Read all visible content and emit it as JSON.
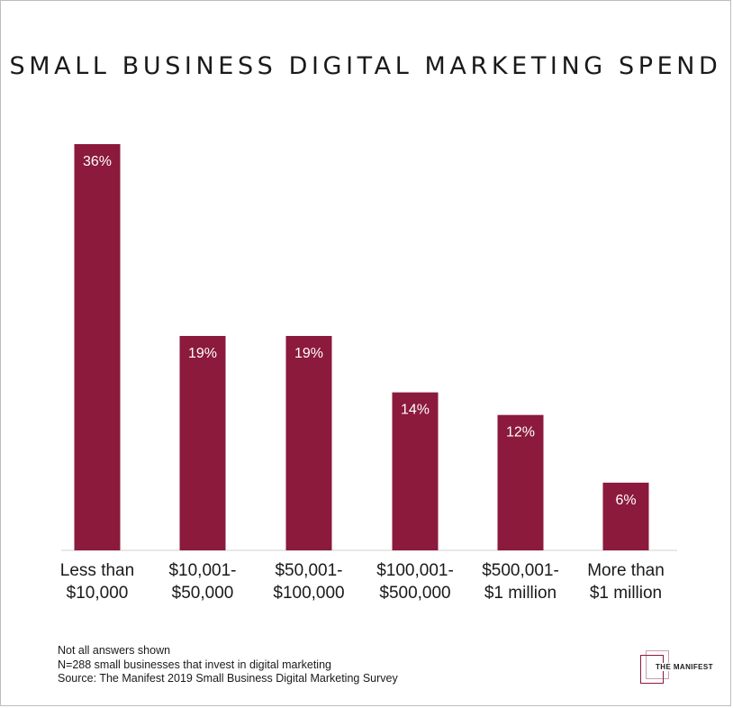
{
  "chart_data": {
    "type": "bar",
    "title": "SMALL BUSINESS DIGITAL MARKETING SPEND",
    "categories": [
      [
        "Less than",
        "$10,000"
      ],
      [
        "$10,001-",
        "$50,000"
      ],
      [
        "$50,001-",
        "$100,000"
      ],
      [
        "$100,001-",
        "$500,000"
      ],
      [
        "$500,001-",
        "$1 million"
      ],
      [
        "More than",
        "$1 million"
      ]
    ],
    "values": [
      36,
      19,
      19,
      14,
      12,
      6
    ],
    "value_labels": [
      "36%",
      "19%",
      "19%",
      "14%",
      "12%",
      "6%"
    ],
    "unit": "%",
    "xlabel": "",
    "ylabel": "",
    "ylim": [
      0,
      36
    ],
    "grid": false,
    "legend": "none",
    "bar_color": "#8b1a3c"
  },
  "footnotes": {
    "line1": "Not all answers shown",
    "line2": "N=288 small businesses that invest in digital marketing",
    "line3": "Source: The Manifest 2019 Small Business Digital Marketing Survey"
  },
  "logo": {
    "text": "THE MANIFEST"
  },
  "colors": {
    "accent": "#8b1a3c",
    "baseline": "#d0d0d0"
  }
}
